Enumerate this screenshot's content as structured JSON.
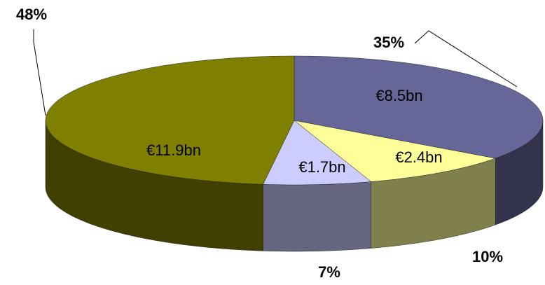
{
  "chart_data": {
    "type": "pie3d",
    "values": [
      35,
      10,
      7,
      48
    ],
    "value_labels": [
      "35%",
      "10%",
      "7%",
      "48%"
    ],
    "amount_labels": [
      "€8.5bn",
      "€2.4bn",
      "€1.7bn",
      "€11.9bn"
    ],
    "colors": [
      "#666699",
      "#ffff99",
      "#ccccff",
      "#808000"
    ]
  }
}
